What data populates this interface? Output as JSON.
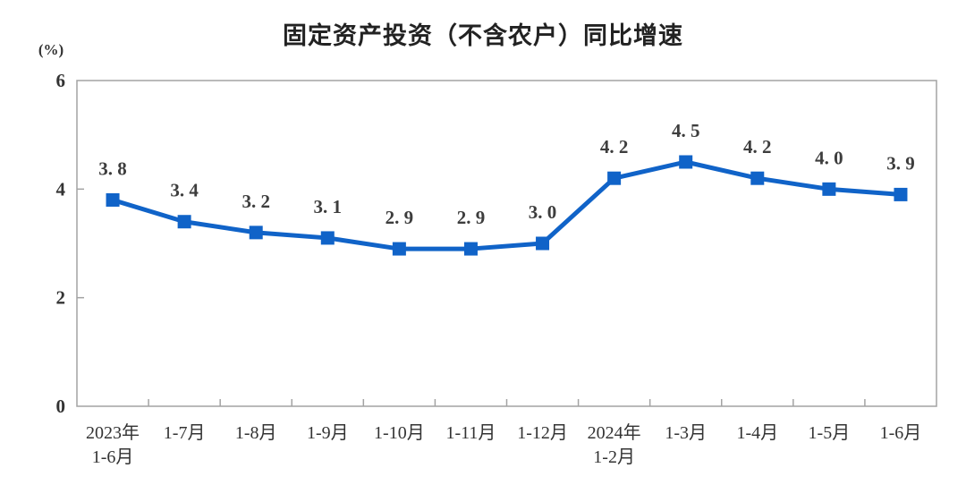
{
  "title": "固定资产投资（不含农户）同比增速",
  "chart_data": {
    "type": "line",
    "title": "固定资产投资（不含农户）同比增速",
    "unit_label": "(%)",
    "categories": [
      [
        "2023年",
        "1-6月"
      ],
      [
        "1-7月"
      ],
      [
        "1-8月"
      ],
      [
        "1-9月"
      ],
      [
        "1-10月"
      ],
      [
        "1-11月"
      ],
      [
        "1-12月"
      ],
      [
        "2024年",
        "1-2月"
      ],
      [
        "1-3月"
      ],
      [
        "1-4月"
      ],
      [
        "1-5月"
      ],
      [
        "1-6月"
      ]
    ],
    "values": [
      3.8,
      3.4,
      3.2,
      3.1,
      2.9,
      2.9,
      3.0,
      4.2,
      4.5,
      4.2,
      4.0,
      3.9
    ],
    "point_labels": [
      "3. 8",
      "3. 4",
      "3. 2",
      "3. 1",
      "2. 9",
      "2. 9",
      "3. 0",
      "4. 2",
      "4. 5",
      "4. 2",
      "4. 0",
      "3. 9"
    ],
    "ylim": [
      0,
      6
    ],
    "yticks": [
      0,
      2,
      4,
      6
    ],
    "grid": false,
    "legend": null,
    "line_color": "#1063C8",
    "marker": "square",
    "axis_color": "#A3A3A3",
    "label_color": "#3D3D3D",
    "tick_text_color": "#333333"
  }
}
